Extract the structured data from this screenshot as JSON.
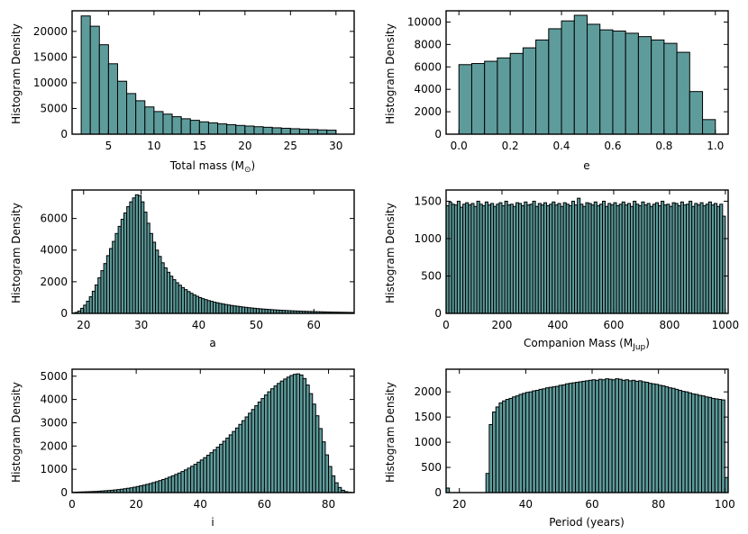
{
  "colors": {
    "bar_fill": "#5e9c9c",
    "bar_edge": "#000000"
  },
  "chart_data": [
    {
      "id": "total-mass",
      "type": "bar",
      "xlabel": "Total mass (M",
      "xlabel_sub": "⊙",
      "xlabel_end": ")",
      "ylabel": "Histogram Density",
      "xlim": [
        1,
        32
      ],
      "ylim": [
        0,
        24000
      ],
      "bin_start": 2,
      "bin_width": 1,
      "values": [
        23000,
        21000,
        17400,
        13700,
        10300,
        7900,
        6500,
        5300,
        4400,
        3900,
        3400,
        3000,
        2700,
        2400,
        2200,
        2000,
        1850,
        1700,
        1580,
        1450,
        1340,
        1240,
        1150,
        1060,
        980,
        900,
        830,
        780
      ],
      "xticks": [
        5,
        10,
        15,
        20,
        25,
        30
      ],
      "xtick_labels": [
        "5",
        "10",
        "15",
        "20",
        "25",
        "30"
      ],
      "yticks": [
        0,
        5000,
        10000,
        15000,
        20000
      ],
      "ytick_labels": [
        "0",
        "5000",
        "10000",
        "15000",
        "20000"
      ]
    },
    {
      "id": "eccentricity",
      "type": "bar",
      "xlabel": "e",
      "ylabel": "Histogram Density",
      "xlim": [
        -0.05,
        1.05
      ],
      "ylim": [
        0,
        11000
      ],
      "bin_start": 0,
      "bin_width": 0.05,
      "values": [
        6200,
        6300,
        6500,
        6800,
        7200,
        7700,
        8400,
        9400,
        10100,
        10600,
        9800,
        9300,
        9200,
        9000,
        8700,
        8400,
        8100,
        7300,
        3800,
        1300
      ],
      "xticks": [
        0,
        0.2,
        0.4,
        0.6,
        0.8,
        1.0
      ],
      "xtick_labels": [
        "0.0",
        "0.2",
        "0.4",
        "0.6",
        "0.8",
        "1.0"
      ],
      "yticks": [
        0,
        2000,
        4000,
        6000,
        8000,
        10000
      ],
      "ytick_labels": [
        "0",
        "2000",
        "4000",
        "6000",
        "8000",
        "10000"
      ]
    },
    {
      "id": "semi-major-axis",
      "type": "bar",
      "xlabel": "a",
      "ylabel": "Histogram Density",
      "xlim": [
        18,
        67
      ],
      "ylim": [
        0,
        7800
      ],
      "bin_start": 18,
      "bin_width": 0.5,
      "values": [
        20,
        60,
        150,
        320,
        520,
        770,
        1050,
        1400,
        1800,
        2250,
        2700,
        3150,
        3650,
        4100,
        4550,
        5050,
        5500,
        5950,
        6350,
        6750,
        7050,
        7300,
        7500,
        7450,
        7050,
        6400,
        5700,
        5050,
        4500,
        4000,
        3600,
        3200,
        2880,
        2600,
        2350,
        2130,
        1940,
        1780,
        1630,
        1500,
        1380,
        1270,
        1170,
        1080,
        1000,
        930,
        870,
        810,
        760,
        710,
        670,
        630,
        595,
        560,
        530,
        500,
        475,
        450,
        425,
        400,
        380,
        360,
        340,
        322,
        305,
        289,
        274,
        260,
        247,
        234,
        222,
        211,
        200,
        190,
        181,
        172,
        163,
        155,
        148,
        141,
        134,
        128,
        122,
        116,
        110,
        105,
        100,
        95,
        90,
        86,
        82,
        78,
        74,
        70,
        67,
        64,
        61,
        58
      ],
      "xticks": [
        20,
        30,
        40,
        50,
        60
      ],
      "xtick_labels": [
        "20",
        "30",
        "40",
        "50",
        "60"
      ],
      "yticks": [
        0,
        2000,
        4000,
        6000
      ],
      "ytick_labels": [
        "0",
        "2000",
        "4000",
        "6000"
      ]
    },
    {
      "id": "companion-mass",
      "type": "bar",
      "xlabel": "Companion Mass (M",
      "xlabel_sub": "Jup",
      "xlabel_end": ")",
      "ylabel": "Histogram Density",
      "xlim": [
        0,
        1010
      ],
      "ylim": [
        0,
        1650
      ],
      "bin_start": 0,
      "bin_width": 10,
      "values": [
        1440,
        1490,
        1460,
        1450,
        1500,
        1420,
        1460,
        1480,
        1450,
        1470,
        1430,
        1500,
        1460,
        1440,
        1490,
        1450,
        1470,
        1430,
        1460,
        1480,
        1440,
        1500,
        1450,
        1460,
        1430,
        1480,
        1470,
        1440,
        1490,
        1450,
        1460,
        1500,
        1430,
        1470,
        1450,
        1480,
        1440,
        1460,
        1490,
        1450,
        1470,
        1430,
        1480,
        1460,
        1440,
        1500,
        1450,
        1540,
        1460,
        1430,
        1480,
        1470,
        1450,
        1490,
        1440,
        1460,
        1500,
        1430,
        1470,
        1450,
        1480,
        1440,
        1460,
        1490,
        1450,
        1470,
        1430,
        1500,
        1460,
        1440,
        1490,
        1450,
        1470,
        1430,
        1460,
        1480,
        1440,
        1500,
        1450,
        1460,
        1430,
        1480,
        1470,
        1440,
        1490,
        1450,
        1460,
        1500,
        1430,
        1470,
        1450,
        1480,
        1440,
        1460,
        1490,
        1450,
        1470,
        1430,
        1460,
        1300
      ],
      "xticks": [
        0,
        200,
        400,
        600,
        800,
        1000
      ],
      "xtick_labels": [
        "0",
        "200",
        "400",
        "600",
        "800",
        "1000"
      ],
      "yticks": [
        0,
        500,
        1000,
        1500
      ],
      "ytick_labels": [
        "0",
        "500",
        "1000",
        "1500"
      ]
    },
    {
      "id": "inclination",
      "type": "bar",
      "xlabel": "i",
      "ylabel": "Histogram Density",
      "xlim": [
        0,
        88
      ],
      "ylim": [
        0,
        5300
      ],
      "bin_start": 0,
      "bin_width": 1,
      "values": [
        15,
        20,
        25,
        30,
        35,
        40,
        45,
        50,
        60,
        70,
        80,
        90,
        100,
        115,
        130,
        145,
        165,
        185,
        205,
        230,
        260,
        290,
        320,
        355,
        390,
        430,
        470,
        515,
        560,
        610,
        665,
        720,
        780,
        840,
        905,
        975,
        1050,
        1130,
        1215,
        1305,
        1400,
        1500,
        1605,
        1715,
        1830,
        1950,
        2075,
        2205,
        2340,
        2480,
        2625,
        2775,
        2930,
        3090,
        3250,
        3410,
        3570,
        3730,
        3890,
        4040,
        4190,
        4330,
        4460,
        4580,
        4690,
        4790,
        4880,
        4960,
        5030,
        5080,
        5100,
        5050,
        4900,
        4620,
        4250,
        3800,
        3300,
        2750,
        2180,
        1620,
        1120,
        720,
        420,
        220,
        100,
        40,
        12,
        4
      ],
      "xticks": [
        0,
        20,
        40,
        60,
        80
      ],
      "xtick_labels": [
        "0",
        "20",
        "40",
        "60",
        "80"
      ],
      "yticks": [
        0,
        1000,
        2000,
        3000,
        4000,
        5000
      ],
      "ytick_labels": [
        "0",
        "1000",
        "2000",
        "3000",
        "4000",
        "5000"
      ]
    },
    {
      "id": "period",
      "type": "bar",
      "xlabel": "Period (years)",
      "ylabel": "Histogram Density",
      "xlim": [
        16,
        101
      ],
      "ylim": [
        0,
        2450
      ],
      "bin_start": 16,
      "bin_width": 1,
      "values": [
        90,
        0,
        0,
        0,
        0,
        0,
        0,
        0,
        0,
        0,
        0,
        0,
        380,
        1350,
        1600,
        1700,
        1780,
        1820,
        1850,
        1870,
        1900,
        1920,
        1950,
        1970,
        1990,
        2000,
        2020,
        2030,
        2050,
        2060,
        2080,
        2090,
        2100,
        2110,
        2130,
        2140,
        2160,
        2170,
        2180,
        2190,
        2200,
        2210,
        2220,
        2230,
        2240,
        2230,
        2250,
        2240,
        2260,
        2250,
        2240,
        2260,
        2250,
        2230,
        2240,
        2220,
        2230,
        2210,
        2220,
        2200,
        2190,
        2170,
        2160,
        2150,
        2130,
        2120,
        2100,
        2080,
        2070,
        2050,
        2030,
        2010,
        2000,
        1980,
        1960,
        1950,
        1930,
        1920,
        1900,
        1890,
        1870,
        1860,
        1850,
        1840,
        300
      ],
      "xticks": [
        20,
        40,
        60,
        80,
        100
      ],
      "xtick_labels": [
        "20",
        "40",
        "60",
        "80",
        "100"
      ],
      "yticks": [
        0,
        500,
        1000,
        1500,
        2000
      ],
      "ytick_labels": [
        "0",
        "500",
        "1000",
        "1500",
        "2000"
      ]
    }
  ]
}
